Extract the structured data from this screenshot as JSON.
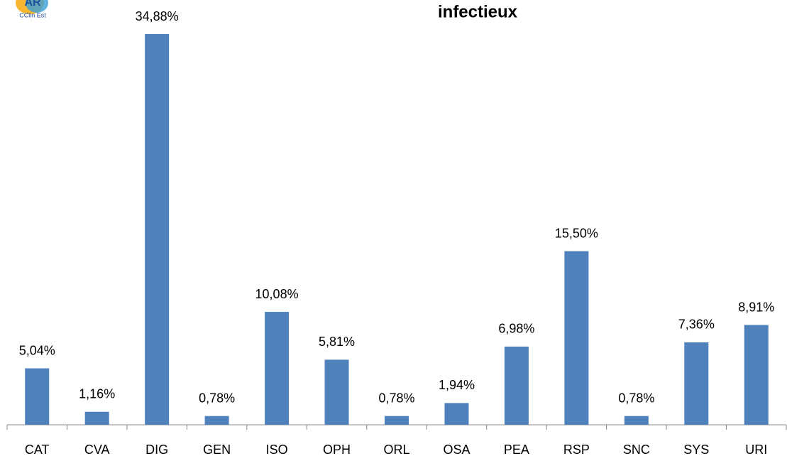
{
  "logo": {
    "text": "AR",
    "subtitle": "CClin Est"
  },
  "chart_data": {
    "type": "bar",
    "title": "infectieux",
    "categories": [
      "CAT",
      "CVA",
      "DIG",
      "GEN",
      "ISO",
      "OPH",
      "ORL",
      "OSA",
      "PEA",
      "RSP",
      "SNC",
      "SYS",
      "URI"
    ],
    "values": [
      5.04,
      1.16,
      34.88,
      0.78,
      10.08,
      5.81,
      0.78,
      1.94,
      6.98,
      15.5,
      0.78,
      7.36,
      8.91
    ],
    "value_labels": [
      "5,04%",
      "1,16%",
      "34,88%",
      "0,78%",
      "10,08%",
      "5,81%",
      "0,78%",
      "1,94%",
      "6,98%",
      "15,50%",
      "0,78%",
      "7,36%",
      "8,91%"
    ],
    "color": "#4f81bd"
  }
}
